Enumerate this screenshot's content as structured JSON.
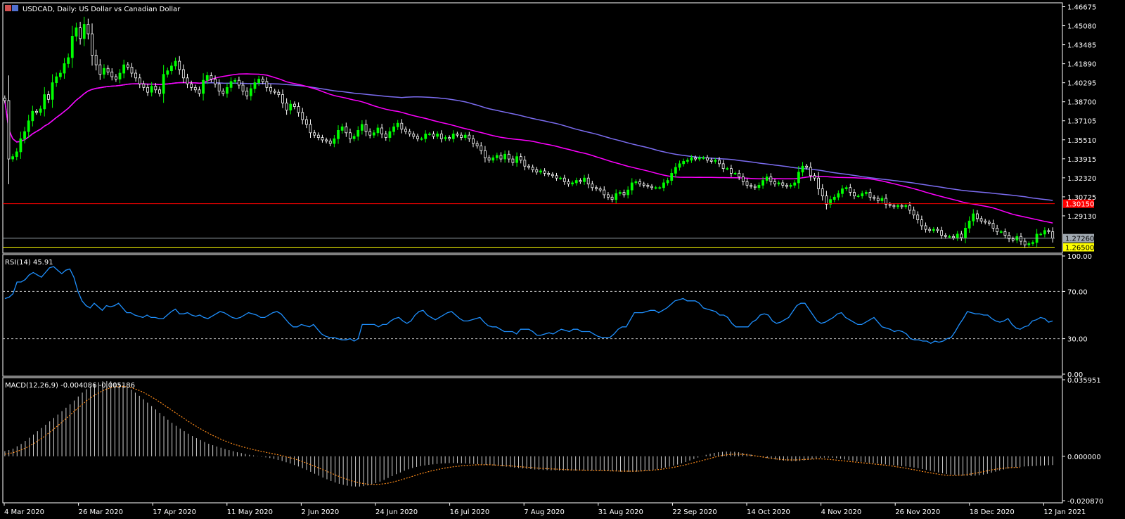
{
  "header": {
    "symbol_label": "USDCAD, Daily:  US Dollar vs Canadian Dollar"
  },
  "colors": {
    "background": "#000000",
    "grid": "#ffffff",
    "bull_candle": "#00ff00",
    "bear_candle": "#ffffff",
    "ma_fast": "#ff00ff",
    "ma_slow": "#7b6cf0",
    "resistance_line": "#ff0000",
    "support_line": "#ffff00",
    "current_price_line": "#a0a8b0",
    "rsi_line": "#1e90ff",
    "macd_histogram": "#d0d0d0",
    "macd_signal": "#ff8c1a"
  },
  "chart_data": [
    {
      "type": "candlestick",
      "panel": "price",
      "title": "USDCAD, Daily:  US Dollar vs Canadian Dollar",
      "y_ticks": [
        "1.46675",
        "1.45080",
        "1.43485",
        "1.41890",
        "1.40295",
        "1.38700",
        "1.37105",
        "1.35510",
        "1.33915",
        "1.32320",
        "1.30725",
        "1.29130"
      ],
      "ylim": [
        1.26,
        1.47
      ],
      "horizontal_lines": [
        {
          "name": "resistance",
          "value": 1.3015,
          "label": "1.30150",
          "color": "#ff0000"
        },
        {
          "name": "current",
          "value": 1.2726,
          "label": "1.27260",
          "color": "#a0a8b0"
        },
        {
          "name": "support",
          "value": 1.265,
          "label": "1.26500",
          "color": "#ffff00"
        }
      ],
      "closes": [
        1.388,
        1.339,
        1.341,
        1.345,
        1.356,
        1.362,
        1.371,
        1.379,
        1.378,
        1.381,
        1.393,
        1.389,
        1.403,
        1.408,
        1.411,
        1.419,
        1.424,
        1.442,
        1.449,
        1.44,
        1.452,
        1.444,
        1.426,
        1.418,
        1.41,
        1.415,
        1.412,
        1.408,
        1.406,
        1.411,
        1.418,
        1.416,
        1.411,
        1.407,
        1.402,
        1.399,
        1.395,
        1.4,
        1.397,
        1.394,
        1.41,
        1.413,
        1.417,
        1.421,
        1.414,
        1.407,
        1.402,
        1.399,
        1.397,
        1.394,
        1.405,
        1.409,
        1.406,
        1.402,
        1.396,
        1.394,
        1.399,
        1.404,
        1.405,
        1.401,
        1.396,
        1.392,
        1.398,
        1.403,
        1.406,
        1.404,
        1.399,
        1.396,
        1.395,
        1.393,
        1.386,
        1.38,
        1.385,
        1.383,
        1.378,
        1.372,
        1.368,
        1.361,
        1.359,
        1.357,
        1.355,
        1.354,
        1.352,
        1.356,
        1.363,
        1.366,
        1.361,
        1.356,
        1.358,
        1.363,
        1.368,
        1.362,
        1.359,
        1.361,
        1.365,
        1.36,
        1.357,
        1.362,
        1.366,
        1.369,
        1.364,
        1.362,
        1.36,
        1.358,
        1.356,
        1.356,
        1.36,
        1.36,
        1.358,
        1.36,
        1.356,
        1.357,
        1.356,
        1.36,
        1.359,
        1.357,
        1.359,
        1.356,
        1.352,
        1.35,
        1.346,
        1.34,
        1.338,
        1.34,
        1.342,
        1.339,
        1.343,
        1.339,
        1.336,
        1.341,
        1.338,
        1.333,
        1.332,
        1.33,
        1.328,
        1.329,
        1.327,
        1.326,
        1.325,
        1.323,
        1.323,
        1.32,
        1.318,
        1.319,
        1.321,
        1.32,
        1.323,
        1.318,
        1.315,
        1.314,
        1.313,
        1.309,
        1.307,
        1.305,
        1.31,
        1.311,
        1.309,
        1.313,
        1.319,
        1.32,
        1.318,
        1.317,
        1.316,
        1.315,
        1.315,
        1.315,
        1.319,
        1.321,
        1.327,
        1.332,
        1.335,
        1.337,
        1.338,
        1.34,
        1.339,
        1.34,
        1.34,
        1.338,
        1.337,
        1.338,
        1.335,
        1.331,
        1.331,
        1.327,
        1.327,
        1.324,
        1.32,
        1.317,
        1.316,
        1.315,
        1.317,
        1.321,
        1.324,
        1.32,
        1.318,
        1.319,
        1.317,
        1.316,
        1.317,
        1.319,
        1.328,
        1.333,
        1.332,
        1.325,
        1.323,
        1.314,
        1.308,
        1.301,
        1.305,
        1.307,
        1.31,
        1.314,
        1.315,
        1.311,
        1.308,
        1.308,
        1.31,
        1.311,
        1.307,
        1.306,
        1.304,
        1.306,
        1.301,
        1.3,
        1.299,
        1.3,
        1.299,
        1.3,
        1.296,
        1.292,
        1.288,
        1.283,
        1.28,
        1.279,
        1.28,
        1.279,
        1.275,
        1.274,
        1.274,
        1.273,
        1.276,
        1.273,
        1.281,
        1.287,
        1.293,
        1.289,
        1.287,
        1.286,
        1.285,
        1.281,
        1.278,
        1.278,
        1.275,
        1.272,
        1.271,
        1.274,
        1.27,
        1.267,
        1.268,
        1.269,
        1.276,
        1.276,
        1.279,
        1.278,
        1.2726
      ]
    },
    {
      "type": "line",
      "panel": "rsi",
      "label": "RSI(14) 45.91",
      "y_ticks": [
        "100.00",
        "70.00",
        "30.00",
        "0.00"
      ],
      "ylim": [
        0,
        100
      ],
      "levels": [
        70,
        30
      ],
      "values": [
        64,
        65,
        68,
        78,
        78,
        80,
        84,
        86,
        84,
        82,
        86,
        90,
        91,
        88,
        85,
        88,
        89,
        82,
        70,
        62,
        58,
        56,
        60,
        57,
        54,
        58,
        57,
        58,
        60,
        56,
        52,
        52,
        50,
        49,
        48,
        50,
        48,
        48,
        47,
        47,
        50,
        53,
        55,
        51,
        51,
        52,
        50,
        49,
        50,
        48,
        47,
        49,
        51,
        53,
        52,
        50,
        48,
        47,
        48,
        50,
        52,
        51,
        50,
        48,
        48,
        50,
        52,
        53,
        51,
        47,
        43,
        40,
        40,
        42,
        41,
        40,
        42,
        38,
        34,
        32,
        31,
        31,
        30,
        29,
        29,
        30,
        28,
        30,
        42,
        42,
        42,
        42,
        40,
        42,
        42,
        45,
        47,
        48,
        45,
        43,
        45,
        50,
        53,
        54,
        50,
        48,
        46,
        48,
        50,
        52,
        53,
        50,
        47,
        45,
        45,
        46,
        47,
        48,
        44,
        41,
        40,
        40,
        38,
        36,
        36,
        36,
        34,
        38,
        38,
        38,
        36,
        33,
        33,
        34,
        35,
        34,
        36,
        38,
        37,
        36,
        38,
        38,
        36,
        36,
        36,
        34,
        32,
        31,
        31,
        31,
        34,
        38,
        40,
        40,
        46,
        52,
        52,
        52,
        53,
        54,
        54,
        52,
        54,
        56,
        59,
        62,
        63,
        64,
        62,
        62,
        62,
        60,
        56,
        55,
        54,
        53,
        50,
        50,
        48,
        43,
        40,
        40,
        40,
        40,
        44,
        46,
        50,
        51,
        50,
        45,
        43,
        44,
        46,
        48,
        53,
        58,
        60,
        60,
        55,
        50,
        45,
        43,
        44,
        46,
        48,
        51,
        52,
        48,
        46,
        44,
        42,
        42,
        44,
        46,
        48,
        44,
        40,
        39,
        38,
        36,
        37,
        36,
        34,
        30,
        29,
        29,
        28,
        28,
        26,
        28,
        27,
        28,
        30,
        31,
        36,
        42,
        47,
        53,
        52,
        51,
        51,
        50,
        50,
        47,
        45,
        44,
        45,
        47,
        42,
        39,
        38,
        40,
        41,
        45,
        46,
        48,
        47,
        44,
        45
      ]
    },
    {
      "type": "bar",
      "panel": "macd",
      "label": "MACD(12,26,9) -0.004086 -0.005186",
      "y_ticks": [
        "0.035951",
        "0.000000",
        "-0.020870"
      ],
      "ylim": [
        -0.02087,
        0.035951
      ],
      "series": [
        {
          "name": "MACD",
          "values": [
            0.0024,
            0.0029,
            0.0036,
            0.0047,
            0.0058,
            0.0072,
            0.0087,
            0.0102,
            0.0118,
            0.0133,
            0.0148,
            0.0164,
            0.018,
            0.0196,
            0.0212,
            0.0228,
            0.0244,
            0.0262,
            0.0281,
            0.0299,
            0.0315,
            0.0329,
            0.034,
            0.0348,
            0.0352,
            0.0353,
            0.0352,
            0.0348,
            0.0342,
            0.0334,
            0.0325,
            0.0313,
            0.0299,
            0.0284,
            0.0268,
            0.0252,
            0.0236,
            0.022,
            0.0204,
            0.0188,
            0.0172,
            0.0157,
            0.0143,
            0.013,
            0.0118,
            0.0106,
            0.0095,
            0.0085,
            0.0076,
            0.0067,
            0.0059,
            0.0052,
            0.0046,
            0.004,
            0.0034,
            0.0029,
            0.0024,
            0.0019,
            0.0015,
            0.0011,
            0.0007,
            0.0004,
            0.0001,
            -0.0002,
            -0.0005,
            -0.0008,
            -0.0012,
            -0.0017,
            -0.0022,
            -0.0028,
            -0.0034,
            -0.0041,
            -0.0048,
            -0.0056,
            -0.0064,
            -0.0073,
            -0.0082,
            -0.0091,
            -0.01,
            -0.0108,
            -0.0116,
            -0.0123,
            -0.0129,
            -0.0134,
            -0.0138,
            -0.0141,
            -0.0142,
            -0.0142,
            -0.014,
            -0.0137,
            -0.0132,
            -0.0126,
            -0.0119,
            -0.0111,
            -0.0102,
            -0.0093,
            -0.0084,
            -0.0076,
            -0.0068,
            -0.0061,
            -0.0055,
            -0.005,
            -0.0046,
            -0.0043,
            -0.004,
            -0.0038,
            -0.0036,
            -0.0034,
            -0.0033,
            -0.0032,
            -0.0032,
            -0.0032,
            -0.0033,
            -0.0034,
            -0.0035,
            -0.0036,
            -0.0037,
            -0.0038,
            -0.004,
            -0.0041,
            -0.0043,
            -0.0045,
            -0.0047,
            -0.0049,
            -0.0051,
            -0.0053,
            -0.0055,
            -0.0057,
            -0.0059,
            -0.006,
            -0.0062,
            -0.0063,
            -0.0064,
            -0.0065,
            -0.0066,
            -0.0066,
            -0.0067,
            -0.0067,
            -0.0067,
            -0.0067,
            -0.0067,
            -0.0067,
            -0.0067,
            -0.0067,
            -0.0067,
            -0.0067,
            -0.0068,
            -0.0068,
            -0.0069,
            -0.007,
            -0.0071,
            -0.0072,
            -0.0073,
            -0.0073,
            -0.0073,
            -0.0072,
            -0.0071,
            -0.0069,
            -0.0067,
            -0.0064,
            -0.0061,
            -0.0057,
            -0.0053,
            -0.0049,
            -0.0044,
            -0.0039,
            -0.0033,
            -0.0027,
            -0.002,
            -0.0013,
            -0.0006,
            0.0001,
            0.0007,
            0.0012,
            0.0016,
            0.0019,
            0.0021,
            0.0022,
            0.0022,
            0.0021,
            0.0019,
            0.0016,
            0.0012,
            0.0008,
            0.0004,
            0.0,
            -0.0004,
            -0.0008,
            -0.0012,
            -0.0015,
            -0.0018,
            -0.002,
            -0.0022,
            -0.0023,
            -0.0023,
            -0.0022,
            -0.002,
            -0.0017,
            -0.0013,
            -0.001,
            -0.0008,
            -0.0006,
            -0.0006,
            -0.0007,
            -0.0009,
            -0.0012,
            -0.0015,
            -0.0018,
            -0.0021,
            -0.0024,
            -0.0026,
            -0.0028,
            -0.003,
            -0.0032,
            -0.0034,
            -0.0036,
            -0.0038,
            -0.004,
            -0.0042,
            -0.0044,
            -0.0046,
            -0.0048,
            -0.005,
            -0.0053,
            -0.0056,
            -0.006,
            -0.0064,
            -0.0068,
            -0.0072,
            -0.0076,
            -0.008,
            -0.0083,
            -0.0086,
            -0.0088,
            -0.009,
            -0.0091,
            -0.0092,
            -0.0092,
            -0.0091,
            -0.0089,
            -0.0086,
            -0.0082,
            -0.0077,
            -0.0072,
            -0.0067,
            -0.0062,
            -0.0058,
            -0.0055,
            -0.0052,
            -0.005,
            -0.0048,
            -0.0047,
            -0.0046,
            -0.0045,
            -0.0044,
            -0.0043,
            -0.0042,
            -0.0041
          ]
        },
        {
          "name": "Signal",
          "values": [
            0.001,
            0.0013,
            0.0017,
            0.0023,
            0.003,
            0.0038,
            0.0048,
            0.0059,
            0.0071,
            0.0084,
            0.0098,
            0.0113,
            0.0128,
            0.0144,
            0.016,
            0.0177,
            0.0194,
            0.0211,
            0.0228,
            0.0244,
            0.026,
            0.0274,
            0.0287,
            0.0298,
            0.0308,
            0.0316,
            0.0322,
            0.0326,
            0.0328,
            0.0328,
            0.0326,
            0.0322,
            0.0316,
            0.0309,
            0.03,
            0.029,
            0.0279,
            0.0267,
            0.0255,
            0.0242,
            0.0229,
            0.0216,
            0.0203,
            0.019,
            0.0177,
            0.0164,
            0.0152,
            0.014,
            0.0129,
            0.0118,
            0.0108,
            0.0098,
            0.0089,
            0.008,
            0.0072,
            0.0065,
            0.0058,
            0.0052,
            0.0046,
            0.0041,
            0.0036,
            0.0031,
            0.0027,
            0.0023,
            0.0019,
            0.0015,
            0.0011,
            0.0007,
            0.0003,
            -0.0002,
            -0.0007,
            -0.0012,
            -0.0018,
            -0.0025,
            -0.0032,
            -0.0039,
            -0.0047,
            -0.0055,
            -0.0063,
            -0.0071,
            -0.0079,
            -0.0087,
            -0.0095,
            -0.0102,
            -0.0109,
            -0.0115,
            -0.012,
            -0.0125,
            -0.0128,
            -0.0131,
            -0.0132,
            -0.0132,
            -0.0131,
            -0.0129,
            -0.0126,
            -0.0122,
            -0.0117,
            -0.0112,
            -0.0106,
            -0.01,
            -0.0094,
            -0.0088,
            -0.0082,
            -0.0077,
            -0.0072,
            -0.0067,
            -0.0063,
            -0.0059,
            -0.0055,
            -0.0052,
            -0.0049,
            -0.0047,
            -0.0045,
            -0.0043,
            -0.0042,
            -0.0041,
            -0.004,
            -0.004,
            -0.004,
            -0.004,
            -0.0041,
            -0.0042,
            -0.0043,
            -0.0044,
            -0.0045,
            -0.0047,
            -0.0048,
            -0.005,
            -0.0051,
            -0.0053,
            -0.0054,
            -0.0056,
            -0.0057,
            -0.0058,
            -0.0059,
            -0.006,
            -0.0061,
            -0.0062,
            -0.0063,
            -0.0064,
            -0.0064,
            -0.0065,
            -0.0065,
            -0.0066,
            -0.0066,
            -0.0067,
            -0.0067,
            -0.0068,
            -0.0068,
            -0.0069,
            -0.0069,
            -0.007,
            -0.007,
            -0.007,
            -0.007,
            -0.007,
            -0.0069,
            -0.0068,
            -0.0067,
            -0.0065,
            -0.0063,
            -0.0061,
            -0.0058,
            -0.0055,
            -0.0052,
            -0.0048,
            -0.0044,
            -0.004,
            -0.0035,
            -0.003,
            -0.0025,
            -0.002,
            -0.0015,
            -0.001,
            -0.0005,
            0.0,
            0.0004,
            0.0007,
            0.0009,
            0.001,
            0.001,
            0.0009,
            0.0007,
            0.0005,
            0.0002,
            -0.0001,
            -0.0004,
            -0.0007,
            -0.001,
            -0.0012,
            -0.0014,
            -0.0016,
            -0.0017,
            -0.0017,
            -0.0017,
            -0.0016,
            -0.0015,
            -0.0014,
            -0.0013,
            -0.0012,
            -0.0012,
            -0.0013,
            -0.0014,
            -0.0016,
            -0.0018,
            -0.002,
            -0.0022,
            -0.0024,
            -0.0026,
            -0.0028,
            -0.003,
            -0.0032,
            -0.0034,
            -0.0036,
            -0.0038,
            -0.004,
            -0.0042,
            -0.0044,
            -0.0047,
            -0.005,
            -0.0053,
            -0.0056,
            -0.006,
            -0.0063,
            -0.0067,
            -0.0071,
            -0.0074,
            -0.0078,
            -0.0081,
            -0.0084,
            -0.0087,
            -0.0089,
            -0.009,
            -0.009,
            -0.0089,
            -0.0088,
            -0.0086,
            -0.0083,
            -0.008,
            -0.0076,
            -0.0072,
            -0.0068,
            -0.0064,
            -0.0061,
            -0.0058,
            -0.0056,
            -0.0054,
            -0.0053,
            -0.0052,
            -0.0052
          ]
        }
      ]
    }
  ],
  "x_axis": {
    "labels": [
      "4 Mar 2020",
      "26 Mar 2020",
      "17 Apr 2020",
      "11 May 2020",
      "2 Jun 2020",
      "24 Jun 2020",
      "16 Jul 2020",
      "7 Aug 2020",
      "31 Aug 2020",
      "22 Sep 2020",
      "14 Oct 2020",
      "4 Nov 2020",
      "26 Nov 2020",
      "18 Dec 2020",
      "12 Jan 2021"
    ]
  }
}
